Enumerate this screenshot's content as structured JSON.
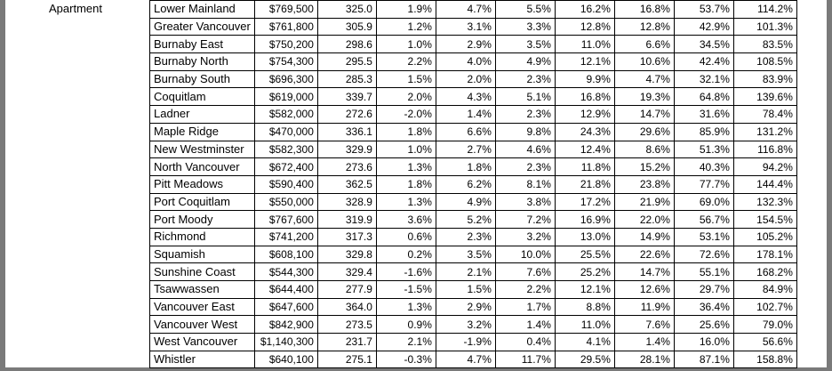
{
  "property_type": "Apartment",
  "rows": [
    {
      "area": "Lower Mainland",
      "price": "$769,500",
      "index": "325.0",
      "m1": "1.9%",
      "m3": "4.7%",
      "m6": "5.5%",
      "y1": "16.2%",
      "y3": "16.8%",
      "y5": "53.7%",
      "y10": "114.2%"
    },
    {
      "area": "Greater Vancouver",
      "price": "$761,800",
      "index": "305.9",
      "m1": "1.2%",
      "m3": "3.1%",
      "m6": "3.3%",
      "y1": "12.8%",
      "y3": "12.8%",
      "y5": "42.9%",
      "y10": "101.3%"
    },
    {
      "area": "Burnaby East",
      "price": "$750,200",
      "index": "298.6",
      "m1": "1.0%",
      "m3": "2.9%",
      "m6": "3.5%",
      "y1": "11.0%",
      "y3": "6.6%",
      "y5": "34.5%",
      "y10": "83.5%"
    },
    {
      "area": "Burnaby North",
      "price": "$754,300",
      "index": "295.5",
      "m1": "2.2%",
      "m3": "4.0%",
      "m6": "4.9%",
      "y1": "12.1%",
      "y3": "10.6%",
      "y5": "42.4%",
      "y10": "108.5%"
    },
    {
      "area": "Burnaby South",
      "price": "$696,300",
      "index": "285.3",
      "m1": "1.5%",
      "m3": "2.0%",
      "m6": "2.3%",
      "y1": "9.9%",
      "y3": "4.7%",
      "y5": "32.1%",
      "y10": "83.9%"
    },
    {
      "area": "Coquitlam",
      "price": "$619,000",
      "index": "339.7",
      "m1": "2.0%",
      "m3": "4.3%",
      "m6": "5.1%",
      "y1": "16.8%",
      "y3": "19.3%",
      "y5": "64.8%",
      "y10": "139.6%"
    },
    {
      "area": "Ladner",
      "price": "$582,000",
      "index": "272.6",
      "m1": "-2.0%",
      "m3": "1.4%",
      "m6": "2.3%",
      "y1": "12.9%",
      "y3": "14.7%",
      "y5": "31.6%",
      "y10": "78.4%"
    },
    {
      "area": "Maple Ridge",
      "price": "$470,000",
      "index": "336.1",
      "m1": "1.8%",
      "m3": "6.6%",
      "m6": "9.8%",
      "y1": "24.3%",
      "y3": "29.6%",
      "y5": "85.9%",
      "y10": "131.2%"
    },
    {
      "area": "New Westminster",
      "price": "$582,300",
      "index": "329.9",
      "m1": "1.0%",
      "m3": "2.7%",
      "m6": "4.6%",
      "y1": "12.4%",
      "y3": "8.6%",
      "y5": "51.3%",
      "y10": "116.8%"
    },
    {
      "area": "North Vancouver",
      "price": "$672,400",
      "index": "273.6",
      "m1": "1.3%",
      "m3": "1.8%",
      "m6": "2.3%",
      "y1": "11.8%",
      "y3": "15.2%",
      "y5": "40.3%",
      "y10": "94.2%"
    },
    {
      "area": "Pitt Meadows",
      "price": "$590,400",
      "index": "362.5",
      "m1": "1.8%",
      "m3": "6.2%",
      "m6": "8.1%",
      "y1": "21.8%",
      "y3": "23.8%",
      "y5": "77.7%",
      "y10": "144.4%"
    },
    {
      "area": "Port Coquitlam",
      "price": "$550,000",
      "index": "328.9",
      "m1": "1.3%",
      "m3": "4.9%",
      "m6": "3.8%",
      "y1": "17.2%",
      "y3": "21.9%",
      "y5": "69.0%",
      "y10": "132.3%"
    },
    {
      "area": "Port Moody",
      "price": "$767,600",
      "index": "319.9",
      "m1": "3.6%",
      "m3": "5.2%",
      "m6": "7.2%",
      "y1": "16.9%",
      "y3": "22.0%",
      "y5": "56.7%",
      "y10": "154.5%"
    },
    {
      "area": "Richmond",
      "price": "$741,200",
      "index": "317.3",
      "m1": "0.6%",
      "m3": "2.3%",
      "m6": "3.2%",
      "y1": "13.0%",
      "y3": "14.9%",
      "y5": "53.1%",
      "y10": "105.2%"
    },
    {
      "area": "Squamish",
      "price": "$608,100",
      "index": "329.8",
      "m1": "0.2%",
      "m3": "3.5%",
      "m6": "10.0%",
      "y1": "25.5%",
      "y3": "22.6%",
      "y5": "72.6%",
      "y10": "178.1%"
    },
    {
      "area": "Sunshine Coast",
      "price": "$544,300",
      "index": "329.4",
      "m1": "-1.6%",
      "m3": "2.1%",
      "m6": "7.6%",
      "y1": "25.2%",
      "y3": "14.7%",
      "y5": "55.1%",
      "y10": "168.2%"
    },
    {
      "area": "Tsawwassen",
      "price": "$644,400",
      "index": "277.9",
      "m1": "-1.5%",
      "m3": "1.5%",
      "m6": "2.2%",
      "y1": "12.1%",
      "y3": "12.6%",
      "y5": "29.7%",
      "y10": "84.9%"
    },
    {
      "area": "Vancouver East",
      "price": "$647,600",
      "index": "364.0",
      "m1": "1.3%",
      "m3": "2.9%",
      "m6": "1.7%",
      "y1": "8.8%",
      "y3": "11.9%",
      "y5": "36.4%",
      "y10": "102.7%"
    },
    {
      "area": "Vancouver West",
      "price": "$842,900",
      "index": "273.5",
      "m1": "0.9%",
      "m3": "3.2%",
      "m6": "1.4%",
      "y1": "11.0%",
      "y3": "7.6%",
      "y5": "25.6%",
      "y10": "79.0%"
    },
    {
      "area": "West Vancouver",
      "price": "$1,140,300",
      "index": "231.7",
      "m1": "2.1%",
      "m3": "-1.9%",
      "m6": "0.4%",
      "y1": "4.1%",
      "y3": "1.4%",
      "y5": "16.0%",
      "y10": "56.6%"
    },
    {
      "area": "Whistler",
      "price": "$640,100",
      "index": "275.1",
      "m1": "-0.3%",
      "m3": "4.7%",
      "m6": "11.7%",
      "y1": "29.5%",
      "y3": "28.1%",
      "y5": "87.1%",
      "y10": "158.8%"
    }
  ]
}
